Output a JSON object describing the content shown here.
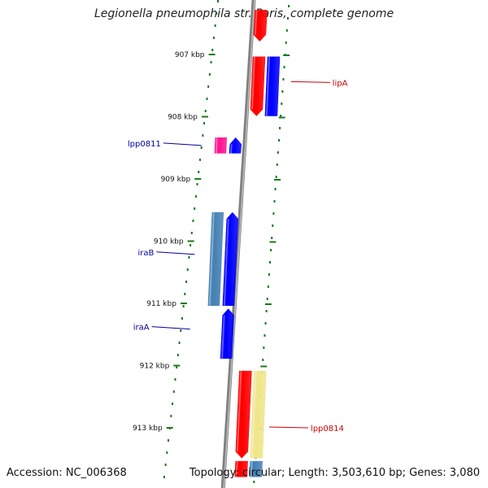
{
  "title": "Legionella pneumophila str. Paris, complete genome",
  "footer": {
    "accession": "Accession: NC_006368",
    "summary": "Topology: circular; Length: 3,503,610 bp; Genes: 3,080"
  },
  "colors": {
    "forward": "#ff0000",
    "reverse": "#0000ff",
    "steelblue": "#4682b4",
    "pink": "#ff1493",
    "khaki": "#f0e68c",
    "tick": "#1a7a1a",
    "backbone": "#808080",
    "forward_label": "#cc0000",
    "reverse_label": "#000099"
  },
  "ticks": [
    {
      "kbp": 907,
      "label": "907 kbp"
    },
    {
      "kbp": 908,
      "label": "908 kbp"
    },
    {
      "kbp": 909,
      "label": "909 kbp"
    },
    {
      "kbp": 910,
      "label": "910 kbp"
    },
    {
      "kbp": 911,
      "label": "911 kbp"
    },
    {
      "kbp": 912,
      "label": "912 kbp"
    },
    {
      "kbp": 913,
      "label": "913 kbp"
    }
  ],
  "features": [
    {
      "strand": "forward",
      "start": 906.3,
      "end": 906.8,
      "color": "red",
      "arrow": "down",
      "continues": "top"
    },
    {
      "strand": "forward",
      "start": 907.05,
      "end": 908.0,
      "color": "red",
      "arrow": "down"
    },
    {
      "strand": "forward",
      "lane": 2,
      "start": 907.05,
      "end": 908.0,
      "color": "blue",
      "arrow": "none"
    },
    {
      "strand": "reverse",
      "lane": 2,
      "start": 908.35,
      "end": 908.6,
      "color": "pink",
      "arrow": "none"
    },
    {
      "strand": "reverse",
      "start": 908.35,
      "end": 908.6,
      "color": "blue",
      "arrow": "up"
    },
    {
      "strand": "reverse",
      "lane": 2,
      "start": 909.55,
      "end": 911.05,
      "color": "steelblue",
      "arrow": "none"
    },
    {
      "strand": "reverse",
      "start": 909.55,
      "end": 911.05,
      "color": "blue",
      "arrow": "up"
    },
    {
      "strand": "reverse",
      "start": 911.1,
      "end": 911.9,
      "color": "blue",
      "arrow": "up"
    },
    {
      "strand": "forward",
      "start": 912.1,
      "end": 913.5,
      "color": "red",
      "arrow": "down"
    },
    {
      "strand": "forward",
      "lane": 2,
      "start": 912.1,
      "end": 913.5,
      "color": "khaki",
      "arrow": "none"
    },
    {
      "strand": "forward",
      "start": 913.55,
      "end": 913.8,
      "color": "red",
      "arrow": "none",
      "continues": "bottom"
    },
    {
      "strand": "forward",
      "lane": 2,
      "start": 913.55,
      "end": 913.8,
      "color": "steelblue",
      "arrow": "none",
      "continues": "bottom"
    }
  ],
  "gene_labels": [
    {
      "text": "lipA",
      "strand": "forward",
      "pos": 907.45
    },
    {
      "text": "lpp0811",
      "strand": "reverse",
      "pos": 908.45
    },
    {
      "text": "iraB",
      "strand": "reverse",
      "pos": 910.2
    },
    {
      "text": "iraA",
      "strand": "reverse",
      "pos": 911.4
    },
    {
      "text": "lpp0814",
      "strand": "forward",
      "pos": 913.0
    }
  ]
}
